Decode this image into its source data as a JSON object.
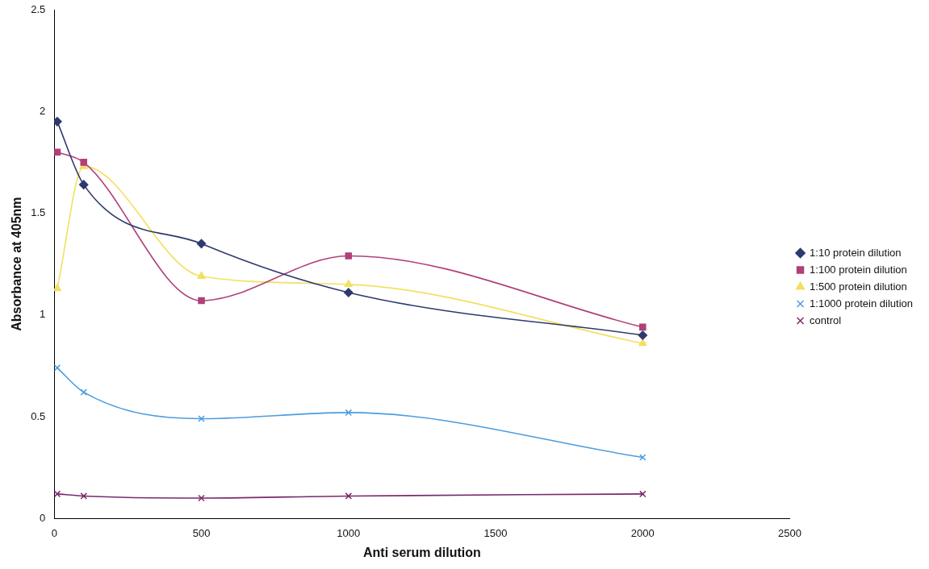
{
  "chart_data": {
    "type": "line",
    "xlabel": "Anti serum dilution",
    "ylabel": "Absorbance at 405nm",
    "xlim": [
      0,
      2500
    ],
    "xticks": [
      0,
      500,
      1000,
      1500,
      2000,
      2500
    ],
    "ylim": [
      0,
      2.5
    ],
    "yticks": [
      0,
      0.5,
      1,
      1.5,
      2,
      2.5
    ],
    "x": [
      10,
      100,
      500,
      1000,
      2000
    ],
    "grid": false,
    "legend": "right",
    "line_style": "solid",
    "series": [
      {
        "name": "1:10 protein dilution",
        "color": "#2e3a6e",
        "marker": "diamond",
        "values": [
          1.95,
          1.64,
          1.35,
          1.11,
          0.9
        ]
      },
      {
        "name": "1:100 protein dilution",
        "color": "#b0407a",
        "marker": "square",
        "values": [
          1.8,
          1.75,
          1.07,
          1.29,
          0.94
        ]
      },
      {
        "name": "1:500 protein dilution",
        "color": "#f2e060",
        "marker": "triangle",
        "values": [
          1.13,
          1.73,
          1.19,
          1.15,
          0.86
        ]
      },
      {
        "name": "1:1000 protein dilution",
        "color": "#4a9de0",
        "marker": "cross",
        "values": [
          0.74,
          0.62,
          0.49,
          0.52,
          0.3
        ]
      },
      {
        "name": "control",
        "color": "#7a2a6a",
        "marker": "cross",
        "values": [
          0.12,
          0.11,
          0.1,
          0.11,
          0.12
        ]
      }
    ]
  }
}
